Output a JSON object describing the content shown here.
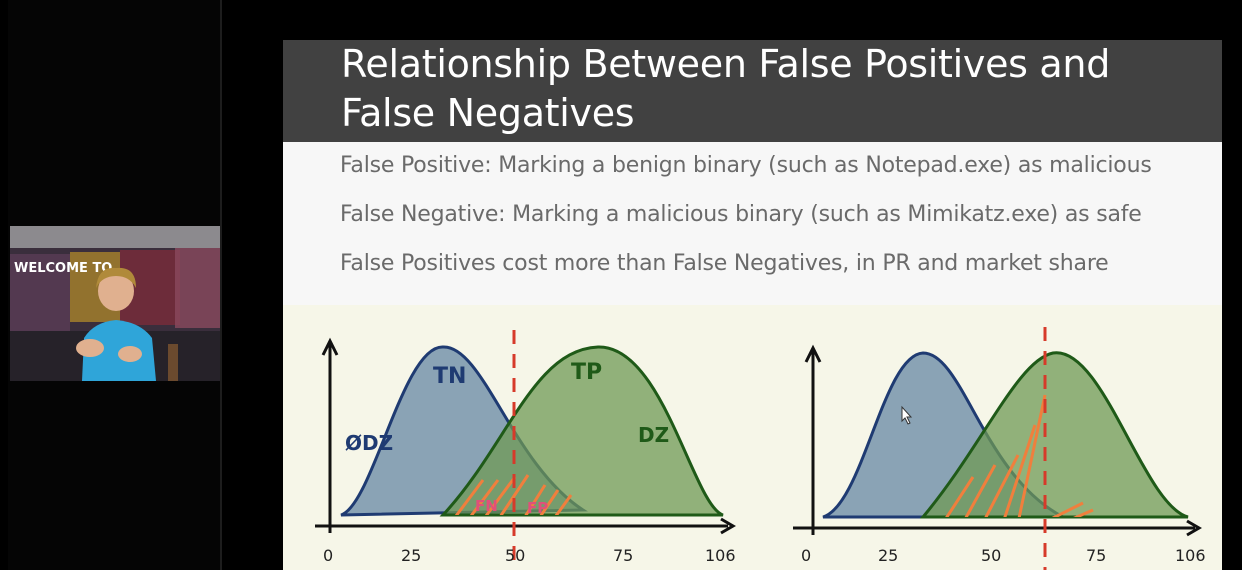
{
  "slide": {
    "title_line1": "Relationship Between False Positives and",
    "title_line2": "False Negatives",
    "bullets": [
      "False Positive: Marking a benign binary (such as Notepad.exe) as malicious",
      "False Negative: Marking a malicious binary (such as Mimikatz.exe) as safe",
      "False Positives cost more than False Negatives, in PR and market share"
    ]
  },
  "webcam": {
    "wall_text": "WELCOME TO"
  },
  "chart_data": [
    {
      "type": "area",
      "x_ticks": [
        "0",
        "25",
        "50",
        "75",
        "106"
      ],
      "threshold": 50,
      "labels": {
        "benign": "ØDZ",
        "tn": "TN",
        "tp": "TP",
        "malicious": "DZ",
        "fn": "FN",
        "fp": "FP"
      },
      "colors": {
        "benign": "#6f8fa8",
        "malicious": "#6f9a55",
        "threshold": "#d63a2a",
        "overlap": "#f07f3d"
      }
    },
    {
      "type": "area",
      "x_ticks": [
        "0",
        "25",
        "50",
        "75",
        "106"
      ],
      "threshold": 63,
      "colors": {
        "benign": "#6f8fa8",
        "malicious": "#6f9a55",
        "threshold": "#d63a2a",
        "overlap": "#f07f3d"
      }
    }
  ]
}
